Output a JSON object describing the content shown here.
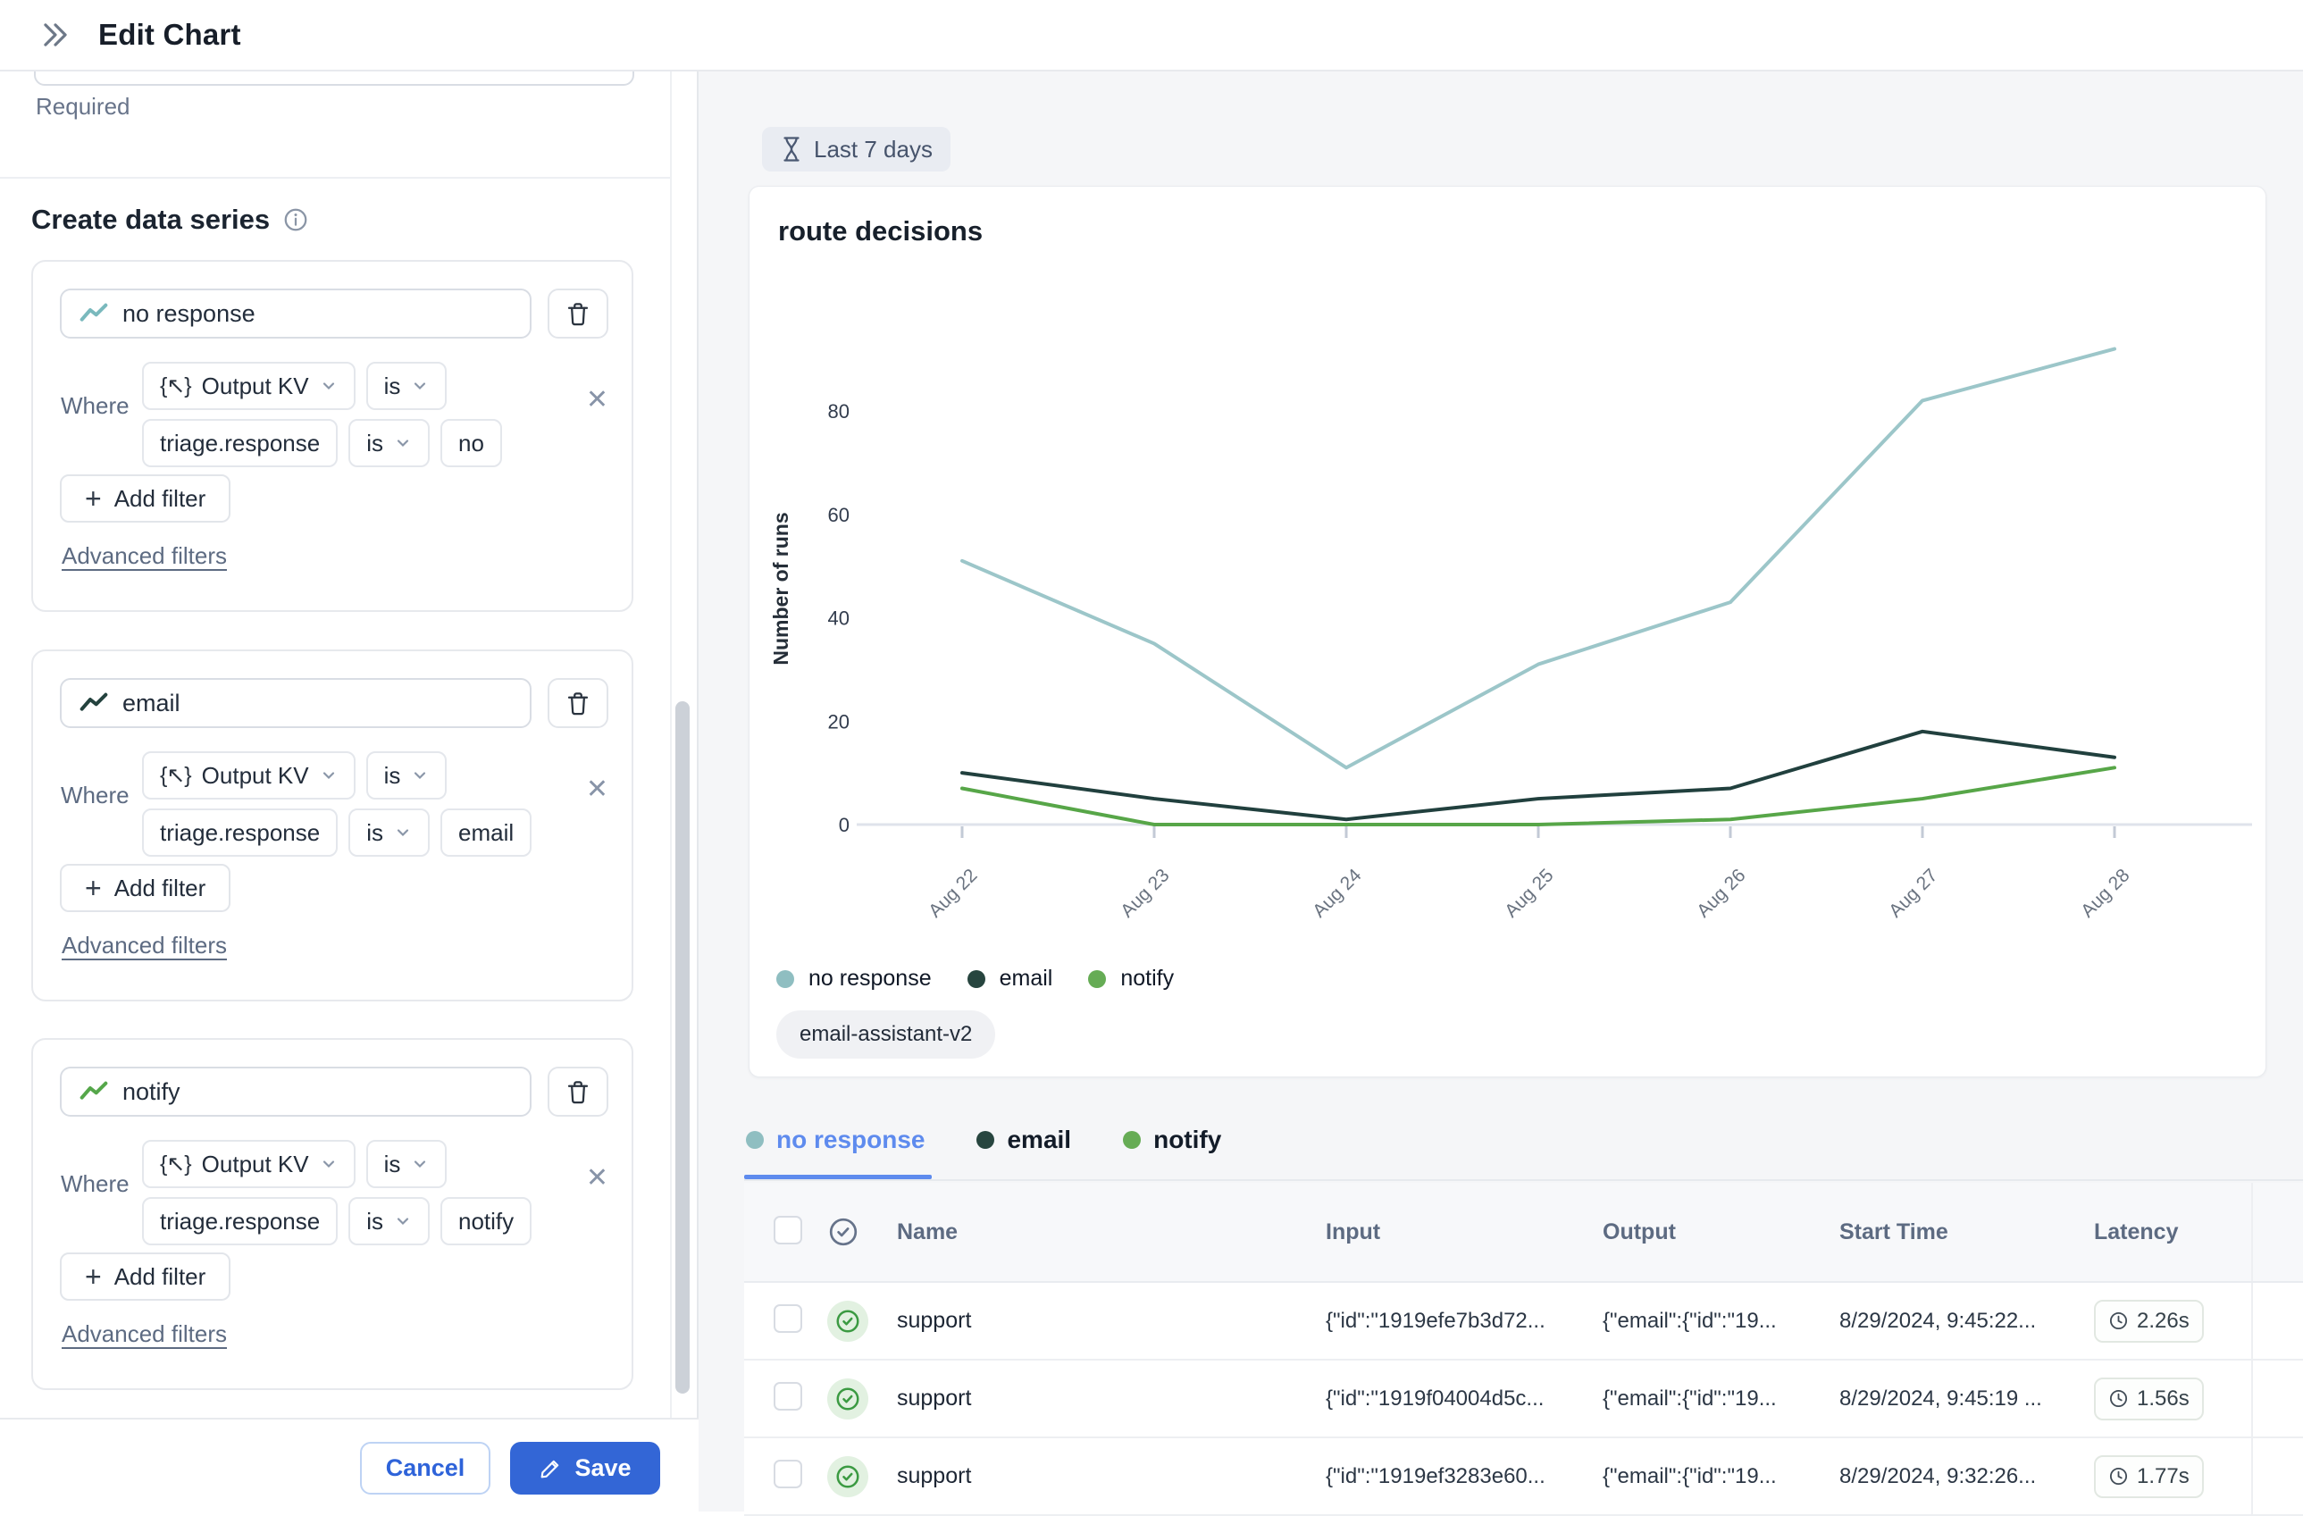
{
  "header": {
    "title": "Edit Chart"
  },
  "icons": {
    "plus": "+",
    "close": "✕",
    "kv_braces": "{↖}"
  },
  "left": {
    "required_label": "Required",
    "section_title": "Create data series",
    "where_label": "Where",
    "field_chip": "Output KV",
    "op_is": "is",
    "key_chip": "triage.response",
    "add_filter_label": "Add filter",
    "advanced_filters_label": "Advanced filters",
    "series": [
      {
        "name": "no response",
        "value": "no",
        "color": "#7ab9bd"
      },
      {
        "name": "email",
        "value": "email",
        "color": "#24423e"
      },
      {
        "name": "notify",
        "value": "notify",
        "color": "#55a74a"
      }
    ],
    "cancel_label": "Cancel",
    "save_label": "Save"
  },
  "panel": {
    "time_range": "Last 7 days",
    "model_badge": "email-assistant-v2"
  },
  "chart_data": {
    "type": "line",
    "title": "route decisions",
    "xlabel": "",
    "ylabel": "Number of runs",
    "categories": [
      "Aug 22",
      "Aug 23",
      "Aug 24",
      "Aug 25",
      "Aug 26",
      "Aug 27",
      "Aug 28"
    ],
    "yticks": [
      0,
      20,
      40,
      60,
      80
    ],
    "ylim": [
      0,
      95
    ],
    "grid": false,
    "legend_position": "bottom",
    "series": [
      {
        "name": "no response",
        "color": "#9cc6c9",
        "values": [
          51,
          35,
          11,
          31,
          43,
          82,
          92
        ]
      },
      {
        "name": "email",
        "color": "#21403e",
        "values": [
          10,
          5,
          1,
          5,
          7,
          18,
          13
        ]
      },
      {
        "name": "notify",
        "color": "#57a648",
        "values": [
          7,
          0,
          0,
          0,
          1,
          5,
          11
        ]
      }
    ]
  },
  "tabs": [
    {
      "label": "no response",
      "dot": "#8fbec1",
      "active": true
    },
    {
      "label": "email",
      "dot": "#27453f",
      "active": false
    },
    {
      "label": "notify",
      "dot": "#66ac55",
      "active": false
    }
  ],
  "table": {
    "headers": {
      "name": "Name",
      "input": "Input",
      "output": "Output",
      "start": "Start Time",
      "latency": "Latency"
    },
    "rows": [
      {
        "name": "support",
        "input": "{\"id\":\"1919efe7b3d72...",
        "output": "{\"email\":{\"id\":\"19...",
        "start": "8/29/2024, 9:45:22...",
        "latency": "2.26s"
      },
      {
        "name": "support",
        "input": "{\"id\":\"1919f04004d5c...",
        "output": "{\"email\":{\"id\":\"19...",
        "start": "8/29/2024, 9:45:19 ...",
        "latency": "1.56s"
      },
      {
        "name": "support",
        "input": "{\"id\":\"1919ef3283e60...",
        "output": "{\"email\":{\"id\":\"19...",
        "start": "8/29/2024, 9:32:26...",
        "latency": "1.77s"
      }
    ]
  }
}
